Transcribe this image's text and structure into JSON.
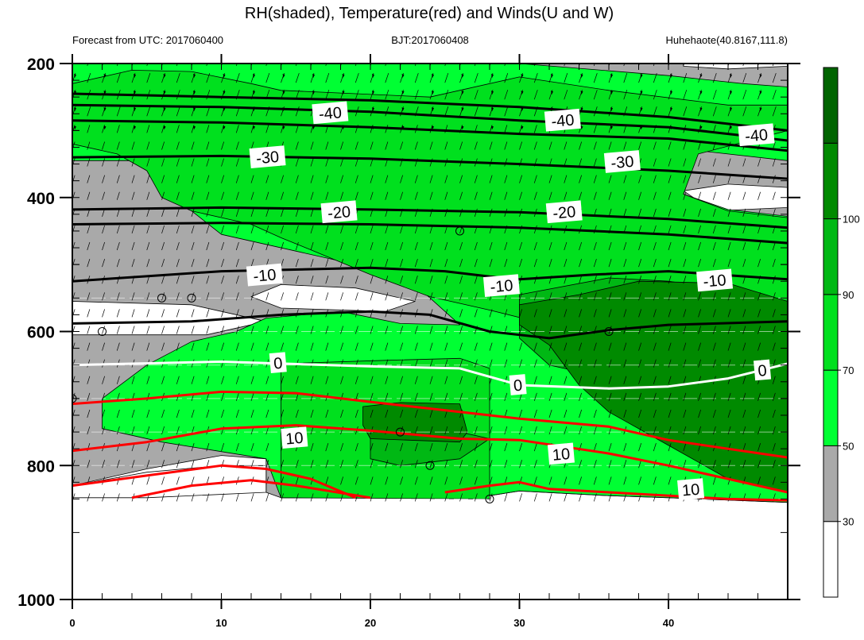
{
  "chart_data": {
    "type": "heatmap",
    "title": "RH(shaded), Temperature(red) and Winds(U and W)",
    "subtitle_left": "Forecast from UTC: 2017060400",
    "subtitle_center": "BJT:2017060408",
    "subtitle_right": "Huhehaote(40.8167,111.8)",
    "xlabel": "",
    "ylabel": "",
    "xlim": [
      0,
      48
    ],
    "ylim": [
      1000,
      200
    ],
    "x_ticks": [
      0,
      10,
      20,
      30,
      40
    ],
    "y_ticks": [
      200,
      400,
      600,
      800,
      1000
    ],
    "y_levels": [
      200,
      225,
      250,
      275,
      300,
      325,
      350,
      375,
      400,
      425,
      450,
      475,
      500,
      525,
      550,
      575,
      600,
      625,
      650,
      675,
      700,
      725,
      750,
      775,
      800,
      825,
      850
    ],
    "colorbar": {
      "levels": [
        30,
        50,
        70,
        90,
        100
      ],
      "colors": [
        "#ffffff",
        "#a9a9a9",
        "#00ff33",
        "#00e01e",
        "#00b814",
        "#008a00",
        "#006400"
      ]
    },
    "rh_regions": [
      {
        "level": "grey",
        "color": "#a9a9a9",
        "points": [
          [
            0,
            200
          ],
          [
            48,
            200
          ],
          [
            48,
            855
          ],
          [
            40,
            848
          ],
          [
            36,
            845
          ],
          [
            30,
            838
          ],
          [
            28,
            845
          ],
          [
            26,
            848
          ],
          [
            20,
            848
          ],
          [
            14,
            848
          ],
          [
            13,
            840
          ],
          [
            13,
            790
          ],
          [
            10,
            785
          ],
          [
            5,
            805
          ],
          [
            0,
            830
          ]
        ]
      },
      {
        "level": "white",
        "color": "#ffffff",
        "points": [
          [
            0,
            830
          ],
          [
            5,
            810
          ],
          [
            10,
            800
          ],
          [
            13,
            800
          ],
          [
            13,
            840
          ],
          [
            5,
            848
          ],
          [
            0,
            848
          ]
        ]
      },
      {
        "level": "white",
        "color": "#ffffff",
        "points": [
          [
            14,
            530
          ],
          [
            19,
            535
          ],
          [
            23,
            555
          ],
          [
            21,
            570
          ],
          [
            14,
            565
          ],
          [
            12,
            548
          ]
        ]
      },
      {
        "level": "white",
        "color": "#ffffff",
        "points": [
          [
            0,
            555
          ],
          [
            8,
            560
          ],
          [
            13,
            585
          ],
          [
            9,
            605
          ],
          [
            0,
            605
          ]
        ]
      },
      {
        "level": "white",
        "color": "#ffffff",
        "points": [
          [
            41,
            390
          ],
          [
            44,
            380
          ],
          [
            48,
            385
          ],
          [
            48,
            415
          ],
          [
            43,
            420
          ]
        ]
      },
      {
        "level": "white",
        "color": "#ffffff",
        "points": [
          [
            41,
            204
          ],
          [
            44,
            208
          ],
          [
            48,
            204
          ],
          [
            48,
            200
          ],
          [
            41,
            200
          ]
        ]
      },
      {
        "level": "green",
        "color": "#00ff33",
        "points": [
          [
            0,
            200
          ],
          [
            30,
            200
          ],
          [
            40,
            218
          ],
          [
            45,
            230
          ],
          [
            48,
            235
          ],
          [
            48,
            345
          ],
          [
            42,
            330
          ],
          [
            41,
            395
          ],
          [
            44,
            418
          ],
          [
            48,
            428
          ],
          [
            48,
            855
          ],
          [
            40,
            848
          ],
          [
            36,
            845
          ],
          [
            30,
            838
          ],
          [
            28,
            845
          ],
          [
            26,
            848
          ],
          [
            20,
            848
          ],
          [
            14,
            848
          ],
          [
            13,
            790
          ],
          [
            6,
            765
          ],
          [
            2,
            745
          ],
          [
            2,
            700
          ],
          [
            5,
            650
          ],
          [
            8,
            615
          ],
          [
            11,
            600
          ],
          [
            13,
            580
          ],
          [
            18,
            570
          ],
          [
            22,
            588
          ],
          [
            26,
            590
          ],
          [
            23,
            530
          ],
          [
            18,
            495
          ],
          [
            10,
            455
          ],
          [
            8,
            420
          ],
          [
            8,
            345
          ],
          [
            0,
            345
          ]
        ]
      },
      {
        "level": "green-mid",
        "color": "#00e01e",
        "points": [
          [
            8,
            212
          ],
          [
            12,
            230
          ],
          [
            14,
            240
          ],
          [
            24,
            250
          ],
          [
            30,
            220
          ],
          [
            36,
            240
          ],
          [
            44,
            262
          ],
          [
            48,
            262
          ],
          [
            48,
            300
          ],
          [
            42,
            335
          ],
          [
            41,
            395
          ],
          [
            44,
            420
          ],
          [
            48,
            430
          ],
          [
            48,
            680
          ],
          [
            42,
            640
          ],
          [
            38,
            610
          ],
          [
            35,
            600
          ],
          [
            32,
            590
          ],
          [
            28,
            568
          ],
          [
            24,
            548
          ],
          [
            20,
            515
          ],
          [
            16,
            478
          ],
          [
            14,
            460
          ],
          [
            12,
            440
          ],
          [
            8,
            420
          ],
          [
            6,
            400
          ],
          [
            5,
            360
          ],
          [
            3,
            335
          ],
          [
            0,
            320
          ],
          [
            0,
            230
          ],
          [
            4,
            210
          ]
        ]
      },
      {
        "level": "green-mid",
        "color": "#00e01e",
        "points": [
          [
            14,
            648
          ],
          [
            21,
            643
          ],
          [
            26,
            640
          ],
          [
            28,
            655
          ],
          [
            28,
            850
          ],
          [
            14,
            848
          ]
        ]
      },
      {
        "level": "green-dark",
        "color": "#00b814",
        "points": [
          [
            30,
            545
          ],
          [
            36,
            520
          ],
          [
            40,
            525
          ],
          [
            46,
            545
          ],
          [
            48,
            560
          ],
          [
            48,
            720
          ],
          [
            42,
            700
          ],
          [
            38,
            680
          ],
          [
            32,
            650
          ],
          [
            30,
            610
          ]
        ]
      },
      {
        "level": "green-dark",
        "color": "#00b814",
        "points": [
          [
            20,
            745
          ],
          [
            23,
            740
          ],
          [
            25,
            745
          ],
          [
            28,
            760
          ],
          [
            26,
            790
          ],
          [
            22,
            800
          ],
          [
            20,
            790
          ]
        ]
      },
      {
        "level": "green-darkest",
        "color": "#008a00",
        "points": [
          [
            30,
            560
          ],
          [
            34,
            545
          ],
          [
            38,
            525
          ],
          [
            44,
            528
          ],
          [
            48,
            555
          ],
          [
            48,
            840
          ],
          [
            44,
            820
          ],
          [
            40,
            770
          ],
          [
            36,
            720
          ],
          [
            34,
            680
          ],
          [
            32,
            620
          ],
          [
            30,
            590
          ]
        ]
      },
      {
        "level": "green-darkest",
        "color": "#008a00",
        "points": [
          [
            19.5,
            712
          ],
          [
            22,
            706
          ],
          [
            26,
            708
          ],
          [
            26.5,
            750
          ],
          [
            26,
            765
          ],
          [
            20,
            760
          ],
          [
            19.5,
            740
          ]
        ]
      }
    ],
    "temperature_isotherms": [
      {
        "value": -40,
        "color": "#000000",
        "points": [
          [
            0,
            245
          ],
          [
            10,
            250
          ],
          [
            20,
            255
          ],
          [
            30,
            265
          ],
          [
            40,
            280
          ],
          [
            48,
            300
          ]
        ]
      },
      {
        "value": -40,
        "color": "#000000",
        "points": [
          [
            0,
            262
          ],
          [
            10,
            265
          ],
          [
            20,
            272
          ],
          [
            30,
            285
          ],
          [
            40,
            295
          ],
          [
            48,
            315
          ]
        ]
      },
      {
        "value": -40,
        "color": "#000000",
        "points": [
          [
            0,
            285
          ],
          [
            10,
            288
          ],
          [
            20,
            295
          ],
          [
            30,
            305
          ],
          [
            40,
            312
          ],
          [
            48,
            330
          ]
        ]
      },
      {
        "value": -30,
        "color": "#000000",
        "points": [
          [
            0,
            340
          ],
          [
            10,
            338
          ],
          [
            20,
            342
          ],
          [
            30,
            350
          ],
          [
            40,
            360
          ],
          [
            48,
            372
          ]
        ]
      },
      {
        "value": -20,
        "color": "#000000",
        "points": [
          [
            0,
            418
          ],
          [
            10,
            415
          ],
          [
            20,
            418
          ],
          [
            30,
            422
          ],
          [
            40,
            432
          ],
          [
            48,
            445
          ]
        ]
      },
      {
        "value": -20,
        "color": "#000000",
        "points": [
          [
            0,
            440
          ],
          [
            10,
            438
          ],
          [
            20,
            440
          ],
          [
            30,
            445
          ],
          [
            40,
            455
          ],
          [
            48,
            468
          ]
        ]
      },
      {
        "value": -10,
        "color": "#000000",
        "points": [
          [
            0,
            525
          ],
          [
            10,
            510
          ],
          [
            20,
            505
          ],
          [
            25,
            510
          ],
          [
            28,
            518
          ],
          [
            30,
            522
          ],
          [
            35,
            515
          ],
          [
            40,
            510
          ],
          [
            48,
            522
          ]
        ]
      },
      {
        "value": -10,
        "color": "#000000",
        "points": [
          [
            0,
            588
          ],
          [
            8,
            585
          ],
          [
            14,
            575
          ],
          [
            20,
            570
          ],
          [
            24,
            575
          ],
          [
            28,
            600
          ],
          [
            32,
            610
          ],
          [
            36,
            598
          ],
          [
            40,
            590
          ],
          [
            48,
            585
          ]
        ]
      },
      {
        "value": 0,
        "color": "#ffffff",
        "points": [
          [
            0,
            650
          ],
          [
            10,
            645
          ],
          [
            20,
            652
          ],
          [
            26,
            655
          ],
          [
            30,
            680
          ],
          [
            36,
            685
          ],
          [
            40,
            682
          ],
          [
            44,
            670
          ],
          [
            48,
            648
          ]
        ]
      },
      {
        "value": 10,
        "color": "#ff0000",
        "points": [
          [
            0,
            708
          ],
          [
            5,
            700
          ],
          [
            10,
            690
          ],
          [
            15,
            692
          ],
          [
            20,
            705
          ],
          [
            26,
            720
          ],
          [
            30,
            730
          ],
          [
            36,
            742
          ],
          [
            40,
            762
          ],
          [
            48,
            788
          ]
        ]
      },
      {
        "value": 10,
        "color": "#ff0000",
        "points": [
          [
            0,
            778
          ],
          [
            5,
            765
          ],
          [
            10,
            745
          ],
          [
            15,
            740
          ],
          [
            20,
            748
          ],
          [
            26,
            760
          ],
          [
            30,
            762
          ],
          [
            36,
            782
          ],
          [
            40,
            800
          ],
          [
            48,
            840
          ]
        ]
      },
      {
        "value": 10,
        "color": "#ff0000",
        "points": [
          [
            0,
            830
          ],
          [
            5,
            815
          ],
          [
            10,
            800
          ],
          [
            13,
            805
          ],
          [
            16,
            820
          ],
          [
            19,
            848
          ]
        ]
      },
      {
        "value": 10,
        "color": "#ff0000",
        "points": [
          [
            4,
            848
          ],
          [
            8,
            830
          ],
          [
            12,
            822
          ],
          [
            15,
            830
          ],
          [
            20,
            848
          ]
        ]
      },
      {
        "value": 10,
        "color": "#ff0000",
        "points": [
          [
            25,
            840
          ],
          [
            28,
            830
          ],
          [
            30,
            825
          ],
          [
            32,
            835
          ],
          [
            36,
            840
          ],
          [
            40,
            845
          ],
          [
            44,
            850
          ],
          [
            48,
            852
          ]
        ]
      }
    ],
    "contour_labels": [
      {
        "text": "-40",
        "x": 17.3,
        "y": 274
      },
      {
        "text": "-40",
        "x": 32.9,
        "y": 285
      },
      {
        "text": "-40",
        "x": 45.9,
        "y": 307
      },
      {
        "text": "-30",
        "x": 13.1,
        "y": 340
      },
      {
        "text": "-30",
        "x": 36.9,
        "y": 347
      },
      {
        "text": "-20",
        "x": 17.9,
        "y": 422
      },
      {
        "text": "-20",
        "x": 33.0,
        "y": 422
      },
      {
        "text": "-10",
        "x": 12.9,
        "y": 516
      },
      {
        "text": "-10",
        "x": 28.8,
        "y": 532
      },
      {
        "text": "-10",
        "x": 43.1,
        "y": 524
      },
      {
        "text": "0",
        "x": 13.8,
        "y": 647
      },
      {
        "text": "0",
        "x": 29.9,
        "y": 680
      },
      {
        "text": "0",
        "x": 46.3,
        "y": 658
      },
      {
        "text": "10",
        "x": 14.9,
        "y": 759
      },
      {
        "text": "10",
        "x": 32.8,
        "y": 783
      },
      {
        "text": "10",
        "x": 41.5,
        "y": 836
      }
    ],
    "calm_markers": [
      [
        6,
        550
      ],
      [
        8,
        550
      ],
      [
        2,
        600
      ],
      [
        26,
        450
      ],
      [
        36,
        600
      ],
      [
        22,
        750
      ],
      [
        24,
        800
      ],
      [
        28,
        850
      ],
      [
        0,
        700
      ]
    ]
  }
}
